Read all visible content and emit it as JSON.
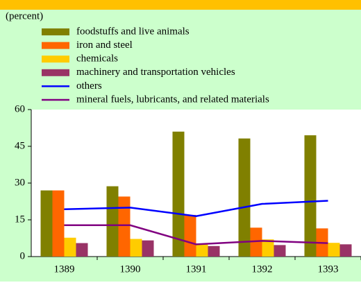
{
  "chart_data": {
    "type": "bar_line",
    "subtitle": "(percent)",
    "categories": [
      "1389",
      "1390",
      "1391",
      "1392",
      "1393"
    ],
    "series": [
      {
        "name": "foodstuffs and live animals",
        "type": "bar",
        "color": "#808000",
        "values": [
          27,
          28.7,
          51,
          48.2,
          49.5
        ]
      },
      {
        "name": "iron and steel",
        "type": "bar",
        "color": "#ff6600",
        "values": [
          27,
          24.5,
          17,
          11.8,
          11.5
        ]
      },
      {
        "name": "chemicals",
        "type": "bar",
        "color": "#ffcc00",
        "values": [
          7.7,
          7.2,
          5,
          7,
          5.6
        ]
      },
      {
        "name": "machinery and transportation vehicles",
        "type": "bar",
        "color": "#993366",
        "values": [
          5.5,
          6.6,
          4.3,
          4.7,
          5
        ]
      },
      {
        "name": "others",
        "type": "line",
        "color": "#0000ff",
        "values": [
          19.3,
          20,
          16.5,
          21.5,
          22.8
        ]
      },
      {
        "name": "mineral fuels, lubricants, and related materials",
        "type": "line",
        "color": "#800080",
        "values": [
          12.8,
          12.8,
          5,
          6.4,
          5.5
        ]
      }
    ],
    "ylim": [
      0,
      60
    ],
    "yticks": [
      0,
      15,
      30,
      45,
      60
    ]
  }
}
